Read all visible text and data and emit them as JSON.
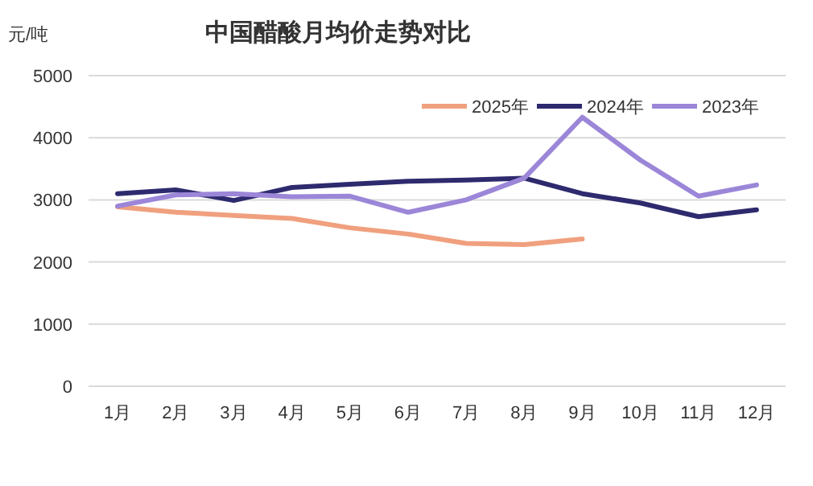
{
  "chart_data": {
    "type": "line",
    "title": "中国醋酸月均价走势对比",
    "ylabel": "元/吨",
    "categories": [
      "1月",
      "2月",
      "3月",
      "4月",
      "5月",
      "6月",
      "7月",
      "8月",
      "9月",
      "10月",
      "11月",
      "12月"
    ],
    "series": [
      {
        "name": "2025年",
        "color": "#f0a07e",
        "values": [
          2890,
          2800,
          2750,
          2700,
          2550,
          2450,
          2300,
          2280,
          2370,
          null,
          null,
          null
        ]
      },
      {
        "name": "2024年",
        "color": "#2e2a6e",
        "values": [
          3100,
          3160,
          2990,
          3200,
          3250,
          3300,
          3320,
          3350,
          3100,
          2950,
          2730,
          2840
        ]
      },
      {
        "name": "2023年",
        "color": "#9b86d8",
        "values": [
          2900,
          3080,
          3100,
          3050,
          3060,
          2800,
          3000,
          3350,
          4330,
          3640,
          3060,
          3240
        ]
      }
    ],
    "ylim": [
      0,
      5000
    ],
    "yticks": [
      0,
      1000,
      2000,
      3000,
      4000,
      5000
    ],
    "grid": "y",
    "legend": "top right",
    "marker": "none",
    "line_style": "solid"
  }
}
